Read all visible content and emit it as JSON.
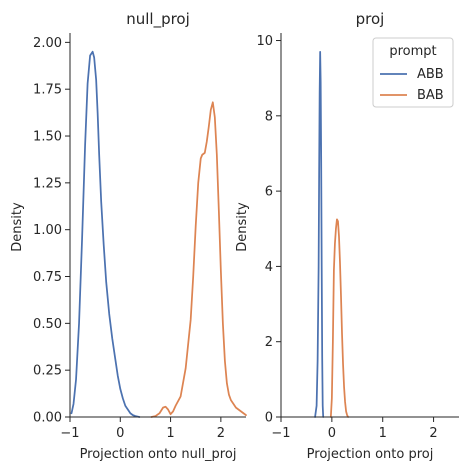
{
  "chart_data": [
    {
      "type": "line",
      "title": "null_proj",
      "xlabel": "Projection onto null_proj",
      "ylabel": "Density",
      "xlim": [
        -1,
        2.5
      ],
      "ylim": [
        0,
        2.05
      ],
      "xticks": [
        -1,
        0,
        1,
        2
      ],
      "yticks": [
        0.0,
        0.25,
        0.5,
        0.75,
        1.0,
        1.25,
        1.5,
        1.75,
        2.0
      ],
      "ytick_labels": [
        "0.00",
        "0.25",
        "0.50",
        "0.75",
        "1.00",
        "1.25",
        "1.50",
        "1.75",
        "2.00"
      ],
      "series": [
        {
          "name": "ABB",
          "color": "#4c72b0",
          "x": [
            -0.97,
            -0.93,
            -0.88,
            -0.82,
            -0.76,
            -0.7,
            -0.65,
            -0.6,
            -0.55,
            -0.52,
            -0.48,
            -0.45,
            -0.42,
            -0.38,
            -0.33,
            -0.28,
            -0.22,
            -0.16,
            -0.1,
            -0.05,
            0.0,
            0.05,
            0.1,
            0.15,
            0.2,
            0.25,
            0.3,
            0.38
          ],
          "y": [
            0.02,
            0.07,
            0.2,
            0.5,
            0.95,
            1.45,
            1.78,
            1.93,
            1.95,
            1.92,
            1.8,
            1.62,
            1.4,
            1.15,
            0.92,
            0.72,
            0.55,
            0.42,
            0.31,
            0.22,
            0.15,
            0.1,
            0.06,
            0.04,
            0.02,
            0.01,
            0.005,
            0.0
          ]
        },
        {
          "name": "BAB",
          "color": "#dd8452",
          "x": [
            0.62,
            0.7,
            0.78,
            0.85,
            0.9,
            0.95,
            1.0,
            1.05,
            1.1,
            1.2,
            1.3,
            1.4,
            1.45,
            1.5,
            1.55,
            1.6,
            1.63,
            1.68,
            1.72,
            1.76,
            1.8,
            1.84,
            1.88,
            1.92,
            1.96,
            2.0,
            2.04,
            2.08,
            2.12,
            2.16,
            2.2,
            2.25,
            2.3,
            2.35,
            2.4,
            2.45,
            2.5
          ],
          "y": [
            0.0,
            0.005,
            0.02,
            0.05,
            0.055,
            0.04,
            0.015,
            0.03,
            0.06,
            0.11,
            0.26,
            0.52,
            0.75,
            1.02,
            1.25,
            1.38,
            1.4,
            1.41,
            1.47,
            1.55,
            1.64,
            1.68,
            1.6,
            1.4,
            1.1,
            0.78,
            0.5,
            0.3,
            0.18,
            0.12,
            0.09,
            0.07,
            0.05,
            0.04,
            0.03,
            0.02,
            0.01
          ]
        }
      ]
    },
    {
      "type": "line",
      "title": "proj",
      "xlabel": "Projection onto proj",
      "ylabel": "Density",
      "xlim": [
        -1,
        2.5
      ],
      "ylim": [
        0,
        10.2
      ],
      "xticks": [
        -1,
        0,
        1,
        2
      ],
      "yticks": [
        0,
        2,
        4,
        6,
        8,
        10
      ],
      "ytick_labels": [
        "0",
        "2",
        "4",
        "6",
        "8",
        "10"
      ],
      "legend": {
        "title": "prompt",
        "location": "top-right",
        "entries": [
          "ABB",
          "BAB"
        ]
      },
      "series": [
        {
          "name": "ABB",
          "color": "#4c72b0",
          "x": [
            -0.33,
            -0.3,
            -0.28,
            -0.26,
            -0.25,
            -0.24,
            -0.23,
            -0.22,
            -0.21,
            -0.2,
            -0.19,
            -0.18,
            -0.17
          ],
          "y": [
            0.0,
            0.3,
            1.5,
            4.0,
            6.5,
            8.6,
            9.7,
            8.9,
            6.8,
            4.0,
            1.6,
            0.3,
            0.0
          ],
          "note_hidden": ""
        },
        {
          "name": "BAB",
          "color": "#dd8452",
          "x": [
            -0.02,
            0.0,
            0.02,
            0.04,
            0.06,
            0.08,
            0.1,
            0.12,
            0.14,
            0.16,
            0.18,
            0.2,
            0.22,
            0.24,
            0.26,
            0.28,
            0.3,
            0.32
          ],
          "y": [
            0.0,
            0.5,
            2.0,
            3.9,
            4.6,
            5.0,
            5.25,
            5.2,
            4.8,
            4.1,
            3.2,
            2.2,
            1.4,
            0.8,
            0.4,
            0.15,
            0.05,
            0.0
          ]
        }
      ]
    }
  ]
}
